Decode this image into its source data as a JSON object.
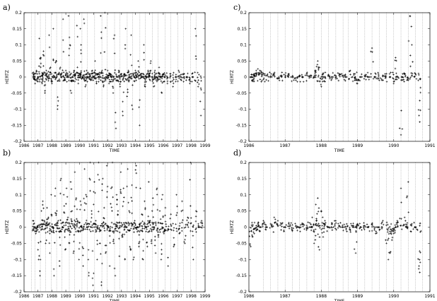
{
  "chart_data": [
    {
      "panel_label": "a)",
      "type": "scatter",
      "marker": "+",
      "xlabel": "TIME",
      "ylabel": "HERTZ",
      "xlim": [
        1986,
        1999
      ],
      "ylim": [
        -0.2,
        0.2
      ],
      "xticks": [
        "1986",
        "1987",
        "1988",
        "1989",
        "1990",
        "1991",
        "1992",
        "1993",
        "1994",
        "1995",
        "1996",
        "1997",
        "1998",
        "1999"
      ],
      "yticks": [
        "0.2",
        "0.15",
        "0.1",
        "0.05",
        "0",
        "-0.05",
        "-0.1",
        "-0.15",
        "-0.2"
      ],
      "grid": "dotted vertical lines",
      "series": [
        {
          "x": [
            1986.65,
            1986.72,
            1986.8,
            1986.9,
            1987.0,
            1987.1,
            1987.2,
            1987.3,
            1987.35,
            1987.4,
            1987.5,
            1987.6,
            1987.7,
            1987.8,
            1987.9,
            1988.0,
            1988.1,
            1988.2,
            1988.3,
            1988.4,
            1988.5,
            1988.6,
            1988.7,
            1988.8,
            1988.9,
            1989.0,
            1989.1,
            1989.2,
            1989.3,
            1989.4,
            1989.5,
            1989.6,
            1989.7,
            1989.8,
            1989.9,
            1990.0,
            1990.05,
            1990.1,
            1990.2,
            1990.3,
            1990.4,
            1990.5,
            1990.6,
            1990.7,
            1990.8,
            1990.9,
            1991.0,
            1991.1,
            1991.2,
            1991.3,
            1991.4,
            1991.5,
            1991.6,
            1991.7,
            1991.8,
            1991.9,
            1992.0,
            1992.1,
            1992.2,
            1992.3,
            1992.4,
            1992.5,
            1992.6,
            1992.7,
            1992.8,
            1992.9,
            1993.0,
            1993.1,
            1993.2,
            1993.3,
            1993.4,
            1993.5,
            1993.6,
            1993.7,
            1993.8,
            1993.9,
            1994.0,
            1994.1,
            1994.2,
            1994.3,
            1994.4,
            1994.5,
            1994.6,
            1994.7,
            1994.8,
            1994.9,
            1995.0,
            1995.1,
            1995.2,
            1995.3,
            1995.4,
            1995.5,
            1995.6,
            1995.7,
            1995.8,
            1995.9,
            1996.0,
            1996.1,
            1996.3,
            1996.5,
            1996.7,
            1996.9,
            1997.1,
            1997.3,
            1997.5,
            1997.7,
            1997.9,
            1998.1,
            1998.3,
            1998.5,
            1998.7
          ],
          "y": [
            0.0,
            0.01,
            -0.02,
            0.02,
            0.0,
            0.12,
            0.06,
            -0.02,
            0.01,
            0.08,
            -0.05,
            0.02,
            0.0,
            0.13,
            0.03,
            -0.02,
            0.15,
            0.0,
            0.05,
            -0.1,
            0.01,
            0.03,
            0.0,
            0.18,
            -0.01,
            0.02,
            0.0,
            0.19,
            0.1,
            -0.05,
            0.0,
            0.02,
            0.01,
            0.16,
            -0.02,
            0.01,
            0.15,
            0.1,
            0.0,
            0.18,
            -0.03,
            0.02,
            0.0,
            0.01,
            -0.01,
            0.02,
            0.0,
            0.05,
            -0.02,
            0.01,
            0.0,
            0.19,
            0.02,
            -0.03,
            0.2,
            0.0,
            0.02,
            -0.02,
            0.01,
            0.0,
            -0.05,
            0.13,
            -0.16,
            0.0,
            0.02,
            -0.03,
            0.01,
            -0.12,
            0.01,
            0.15,
            -0.06,
            0.02,
            0.0,
            0.13,
            -0.1,
            0.0,
            0.02,
            0.0,
            0.05,
            -0.15,
            0.01,
            0.0,
            0.1,
            -0.03,
            0.0,
            0.02,
            0.01,
            0.05,
            0.0,
            -0.03,
            0.02,
            0.0,
            -0.01,
            0.03,
            0.0,
            -0.05,
            0.01,
            0.0,
            -0.02,
            0.01,
            -0.03,
            0.0,
            0.02,
            -0.01,
            0.01,
            0.0,
            -0.02,
            0.0,
            0.15,
            -0.03,
            -0.12
          ]
        }
      ]
    },
    {
      "panel_label": "b)",
      "type": "scatter",
      "marker": "+",
      "xlabel": "TIME",
      "ylabel": "HERTZ",
      "xlim": [
        1986,
        1999
      ],
      "ylim": [
        -0.2,
        0.2
      ],
      "xticks": [
        "1986",
        "1987",
        "1988",
        "1989",
        "1990",
        "1991",
        "1992",
        "1993",
        "1994",
        "1995",
        "1996",
        "1997",
        "1998",
        "1999"
      ],
      "yticks": [
        "0.2",
        "0.15",
        "0.1",
        "0.05",
        "0",
        "-0.05",
        "-0.1",
        "-0.15",
        "-0.2"
      ],
      "grid": "dotted vertical lines",
      "series": [
        {
          "x": [
            1986.65,
            1986.75,
            1986.85,
            1986.95,
            1987.05,
            1987.15,
            1987.25,
            1987.35,
            1987.45,
            1987.55,
            1987.65,
            1987.75,
            1987.85,
            1987.95,
            1988.05,
            1988.15,
            1988.25,
            1988.35,
            1988.45,
            1988.55,
            1988.65,
            1988.75,
            1988.85,
            1988.95,
            1989.05,
            1989.15,
            1989.25,
            1989.35,
            1989.45,
            1989.55,
            1989.65,
            1989.75,
            1989.85,
            1989.95,
            1990.05,
            1990.15,
            1990.25,
            1990.35,
            1990.45,
            1990.55,
            1990.65,
            1990.75,
            1990.85,
            1990.95,
            1991.05,
            1991.15,
            1991.25,
            1991.35,
            1991.45,
            1991.55,
            1991.65,
            1991.75,
            1991.85,
            1991.95,
            1992.05,
            1992.15,
            1992.25,
            1992.35,
            1992.45,
            1992.55,
            1992.65,
            1992.75,
            1992.85,
            1992.95,
            1993.05,
            1993.15,
            1993.25,
            1993.35,
            1993.45,
            1993.55,
            1993.65,
            1993.75,
            1993.85,
            1993.95,
            1994.05,
            1994.15,
            1994.25,
            1994.35,
            1994.45,
            1994.55,
            1994.65,
            1994.75,
            1994.85,
            1994.95,
            1995.05,
            1995.15,
            1995.25,
            1995.35,
            1995.45,
            1995.55,
            1995.65,
            1995.75,
            1995.85,
            1995.95,
            1996.05,
            1996.15,
            1996.35,
            1996.55,
            1996.75,
            1996.95,
            1997.15,
            1997.35,
            1997.55,
            1997.75,
            1997.95,
            1998.15,
            1998.35,
            1998.55,
            1998.75
          ],
          "y": [
            0.02,
            0.0,
            -0.02,
            0.0,
            -0.1,
            -0.15,
            0.05,
            0.08,
            0.02,
            -0.05,
            0.06,
            0.03,
            -0.08,
            0.1,
            0.0,
            -0.15,
            0.12,
            0.05,
            0.02,
            -0.12,
            0.15,
            0.0,
            0.1,
            -0.07,
            0.12,
            0.03,
            -0.05,
            0.14,
            0.05,
            -0.08,
            0.17,
            0.09,
            0.02,
            -0.1,
            0.08,
            0.0,
            -0.12,
            0.18,
            0.1,
            0.0,
            -0.15,
            0.2,
            0.05,
            -0.18,
            0.14,
            0.02,
            -0.1,
            0.2,
            -0.05,
            -0.18,
            0.15,
            0.06,
            -0.08,
            0.19,
            0.0,
            -0.12,
            0.12,
            0.2,
            -0.05,
            -0.15,
            0.1,
            0.05,
            -0.09,
            0.17,
            -0.03,
            0.12,
            -0.1,
            0.0,
            0.18,
            0.05,
            -0.07,
            0.13,
            -0.1,
            0.02,
            0.19,
            0.0,
            -0.06,
            0.12,
            0.04,
            -0.1,
            0.08,
            0.0,
            -0.06,
            0.14,
            0.02,
            -0.05,
            0.09,
            0.0,
            -0.08,
            0.12,
            -0.03,
            0.05,
            -0.1,
            0.1,
            -0.02,
            0.06,
            -0.12,
            0.04,
            -0.06,
            0.1,
            -0.02,
            0.08,
            -0.05,
            0.03,
            0.2,
            -0.1,
            0.05,
            0.0,
            0.02
          ]
        }
      ]
    },
    {
      "panel_label": "c)",
      "type": "scatter",
      "marker": "+",
      "xlabel": "TIME",
      "ylabel": "HERTZ",
      "xlim": [
        1986,
        1991
      ],
      "ylim": [
        -0.2,
        0.2
      ],
      "xticks": [
        "1986",
        "1987",
        "1988",
        "1989",
        "1990",
        "1991"
      ],
      "yticks": [
        "0.2",
        "0.15",
        "0.1",
        "0.05",
        "0",
        "-0.05",
        "-0.1",
        "-0.15",
        "-0.2"
      ],
      "grid": "dotted vertical lines",
      "series": [
        {
          "x": [
            1986.05,
            1986.1,
            1986.15,
            1986.2,
            1986.25,
            1986.3,
            1986.35,
            1986.4,
            1986.5,
            1986.6,
            1986.7,
            1986.8,
            1986.9,
            1987.0,
            1987.1,
            1987.2,
            1987.3,
            1987.4,
            1987.5,
            1987.6,
            1987.7,
            1987.8,
            1987.85,
            1987.9,
            1987.95,
            1988.0,
            1988.05,
            1988.1,
            1988.2,
            1988.3,
            1988.4,
            1988.5,
            1988.6,
            1988.7,
            1988.8,
            1988.9,
            1988.95,
            1989.0,
            1989.1,
            1989.2,
            1989.3,
            1989.4,
            1989.5,
            1989.6,
            1989.7,
            1989.8,
            1989.9,
            1990.0,
            1990.05,
            1990.1,
            1990.2,
            1990.25,
            1990.3,
            1990.4,
            1990.45,
            1990.5,
            1990.6,
            1990.7,
            1990.72
          ],
          "y": [
            0.0,
            -0.01,
            0.01,
            0.02,
            0.025,
            0.02,
            0.015,
            0.01,
            0.005,
            0.0,
            0.01,
            -0.005,
            0.005,
            0.0,
            0.01,
            0.0,
            -0.01,
            0.005,
            0.0,
            0.01,
            0.005,
            0.0,
            0.02,
            0.05,
            0.03,
            -0.03,
            0.01,
            0.0,
            0.005,
            0.0,
            -0.005,
            0.01,
            0.005,
            0.0,
            0.02,
            0.01,
            -0.01,
            -0.02,
            0.0,
            0.005,
            0.0,
            0.09,
            0.0,
            -0.01,
            0.005,
            0.01,
            0.0,
            -0.02,
            0.06,
            0.0,
            -0.18,
            0.0,
            0.01,
            -0.01,
            0.19,
            0.1,
            0.01,
            -0.12,
            -0.14
          ]
        }
      ]
    },
    {
      "panel_label": "d)",
      "type": "scatter",
      "marker": "+",
      "xlabel": "TIME",
      "ylabel": "HERTZ",
      "xlim": [
        1986,
        1991
      ],
      "ylim": [
        -0.2,
        0.2
      ],
      "xticks": [
        "1986",
        "1987",
        "1988",
        "1989",
        "1990",
        "1991"
      ],
      "yticks": [
        "0.2",
        "0.15",
        "0.1",
        "0.05",
        "0",
        "-0.05",
        "-0.1",
        "-0.15",
        "-0.2"
      ],
      "grid": "dotted vertical lines",
      "series": [
        {
          "x": [
            1986.05,
            1986.1,
            1986.15,
            1986.2,
            1986.25,
            1986.3,
            1986.4,
            1986.5,
            1986.6,
            1986.7,
            1986.8,
            1986.9,
            1987.0,
            1987.1,
            1987.2,
            1987.3,
            1987.4,
            1987.5,
            1987.6,
            1987.7,
            1987.75,
            1987.8,
            1987.85,
            1987.9,
            1987.95,
            1988.0,
            1988.05,
            1988.1,
            1988.2,
            1988.3,
            1988.4,
            1988.5,
            1988.6,
            1988.7,
            1988.8,
            1988.9,
            1988.95,
            1989.0,
            1989.1,
            1989.2,
            1989.3,
            1989.4,
            1989.5,
            1989.6,
            1989.7,
            1989.8,
            1989.85,
            1989.9,
            1989.95,
            1990.0,
            1990.05,
            1990.1,
            1990.2,
            1990.3,
            1990.35,
            1990.4,
            1990.5,
            1990.6,
            1990.7,
            1990.72
          ],
          "y": [
            -0.06,
            -0.03,
            -0.02,
            -0.01,
            0.01,
            0.0,
            0.02,
            0.0,
            0.01,
            0.03,
            0.02,
            0.01,
            0.0,
            0.01,
            -0.01,
            0.005,
            0.0,
            0.01,
            -0.005,
            0.0,
            0.03,
            -0.05,
            0.07,
            0.09,
            -0.07,
            0.05,
            -0.03,
            0.02,
            0.0,
            0.01,
            0.02,
            0.005,
            0.0,
            0.01,
            -0.01,
            0.0,
            -0.08,
            0.01,
            0.0,
            0.005,
            0.0,
            0.01,
            -0.02,
            0.0,
            0.02,
            -0.05,
            -0.1,
            -0.08,
            -0.04,
            -0.02,
            0.0,
            0.02,
            0.12,
            0.03,
            0.0,
            0.14,
            0.01,
            0.0,
            -0.12,
            -0.14
          ]
        }
      ]
    }
  ]
}
